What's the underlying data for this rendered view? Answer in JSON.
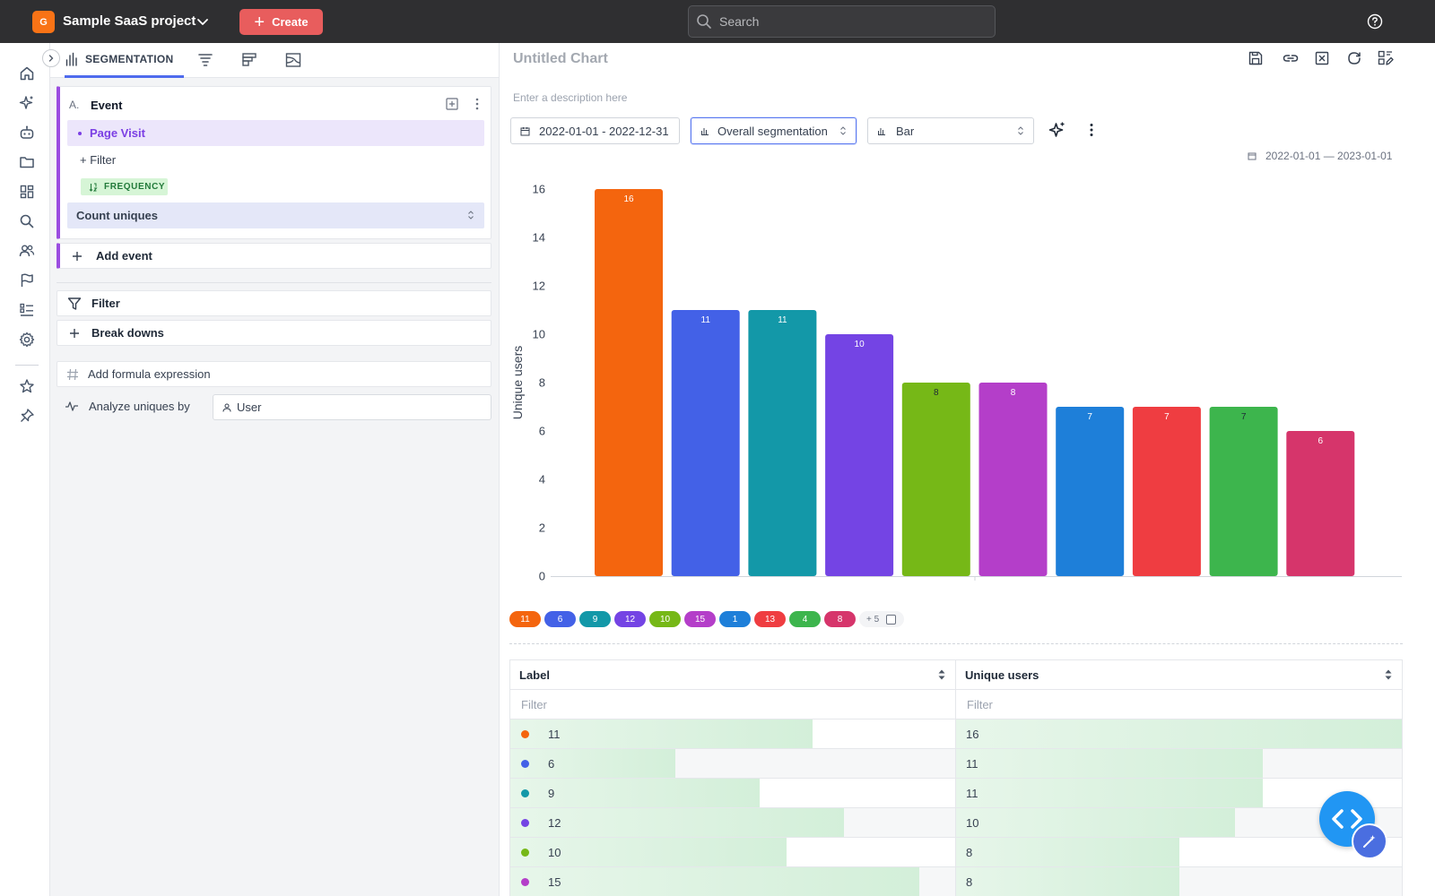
{
  "topbar": {
    "project_initial": "G",
    "project_name": "Sample SaaS project",
    "create_label": "Create",
    "search_placeholder": "Search"
  },
  "rail": {
    "icons": [
      "home-icon",
      "sparkle-icon",
      "robot-icon",
      "folder-icon",
      "dashboard-icon",
      "search-icon",
      "users-icon",
      "flag-icon",
      "list-icon",
      "settings-icon",
      "star-icon",
      "pin-icon"
    ]
  },
  "left_panel": {
    "active_tab": "SEGMENTATION",
    "other_tabs": [
      "funnel-tab-icon",
      "retention-tab-icon",
      "journey-tab-icon"
    ],
    "event": {
      "letter": "A.",
      "title": "Event",
      "selected_event": "Page Visit",
      "filter_label": "+ Filter",
      "frequency_label": "FREQUENCY",
      "aggregation": "Count uniques"
    },
    "add_event_label": "Add event",
    "filter_label": "Filter",
    "breakdowns_label": "Break downs",
    "formula_label": "Add formula expression",
    "analyze_label": "Analyze uniques by",
    "analyze_value": "User"
  },
  "main": {
    "chart_title": "Untitled Chart",
    "description_placeholder": "Enter a description here",
    "date_range": "2022-01-01 - 2022-12-31",
    "segmentation": "Overall segmentation",
    "chart_type": "Bar",
    "range_label": "2022-01-01 — 2023-01-01",
    "legend_more": "+ 5",
    "table": {
      "col_label": "Label",
      "col_value": "Unique users",
      "filter_placeholder": "Filter",
      "rows": [
        {
          "label": "11",
          "value": "16",
          "color": "#f4650e"
        },
        {
          "label": "6",
          "value": "11",
          "color": "#4361e7"
        },
        {
          "label": "9",
          "value": "11",
          "color": "#1398a8"
        },
        {
          "label": "12",
          "value": "10",
          "color": "#7444e4"
        },
        {
          "label": "10",
          "value": "8",
          "color": "#76b817"
        },
        {
          "label": "15",
          "value": "8",
          "color": "#b43ec9"
        }
      ]
    }
  },
  "colors": {
    "accent": "#4f6bed",
    "event_border": "#9b4de0",
    "create_button": "#e85d5d",
    "fab": "#2196f3"
  },
  "chart_data": {
    "type": "bar",
    "title": "",
    "xlabel": "",
    "ylabel": "Unique users",
    "ylim": [
      0,
      16
    ],
    "yticks": [
      0,
      2,
      4,
      6,
      8,
      10,
      12,
      14,
      16
    ],
    "grid": false,
    "categories": [
      "11",
      "6",
      "9",
      "12",
      "10",
      "15",
      "1",
      "13",
      "4",
      "8"
    ],
    "values": [
      16,
      11,
      11,
      10,
      8,
      8,
      7,
      7,
      7,
      6
    ],
    "colors": [
      "#f4650e",
      "#4361e7",
      "#1398a8",
      "#7444e4",
      "#76b817",
      "#b43ec9",
      "#1e7fd9",
      "#ef3d41",
      "#3db54d",
      "#d6356b"
    ]
  }
}
